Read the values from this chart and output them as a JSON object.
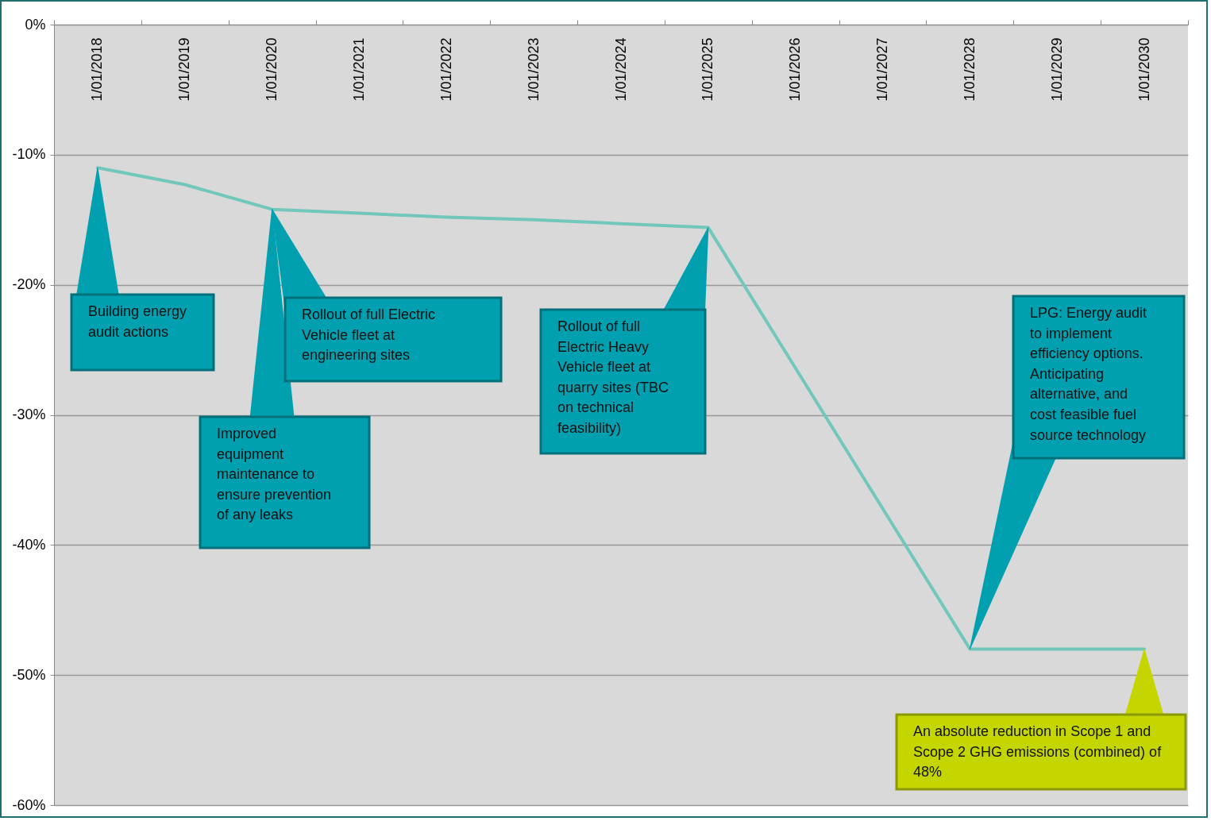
{
  "chart_data": {
    "type": "line",
    "categories": [
      "1/01/2018",
      "1/01/2019",
      "1/01/2020",
      "1/01/2021",
      "1/01/2022",
      "1/01/2023",
      "1/01/2024",
      "1/01/2025",
      "1/01/2026",
      "1/01/2027",
      "1/01/2028",
      "1/01/2029",
      "1/01/2030"
    ],
    "series": [
      {
        "color": "#72c7bb",
        "values": [
          -11.0,
          -12.3,
          -14.2,
          -14.5,
          -14.8,
          -15.0,
          -15.3,
          -15.6,
          -26.4,
          -37.2,
          -48.0,
          -48.0,
          -48.0
        ]
      }
    ],
    "ylim": [
      -60,
      0
    ],
    "yticks": [
      {
        "value": -60,
        "label": "-60%"
      },
      {
        "value": -50,
        "label": "-50%"
      },
      {
        "value": -40,
        "label": "-40%"
      },
      {
        "value": -30,
        "label": "-30%"
      },
      {
        "value": -20,
        "label": "-20%"
      },
      {
        "value": -10,
        "label": "-10%"
      },
      {
        "value": 0,
        "label": "0%"
      }
    ],
    "grid": "y",
    "marker": "none",
    "legend": false,
    "annotations": [
      {
        "text": "Building energy audit actions",
        "x": "1/01/2018",
        "y": -11.0
      },
      {
        "text": "Improved equipment maintenance to ensure prevention of any leaks",
        "x": "1/01/2020",
        "y": -14.2
      },
      {
        "text": "Rollout of full Electric Vehicle fleet at engineering sites",
        "x": "1/01/2020",
        "y": -14.2
      },
      {
        "text": "Rollout of full Electric Heavy Vehicle fleet at quarry sites (TBC on technical feasibility)",
        "x": "1/01/2025",
        "y": -15.6
      },
      {
        "text": "LPG: Energy audit to implement efficiency options. Anticipating alternative, and cost feasible fuel source technology",
        "x": "1/01/2028",
        "y": -48.0
      },
      {
        "text": "An absolute reduction in Scope 1 and Scope 2 GHG emissions (combined) of 48%",
        "x": "1/01/2030",
        "y": -48.0
      }
    ]
  }
}
